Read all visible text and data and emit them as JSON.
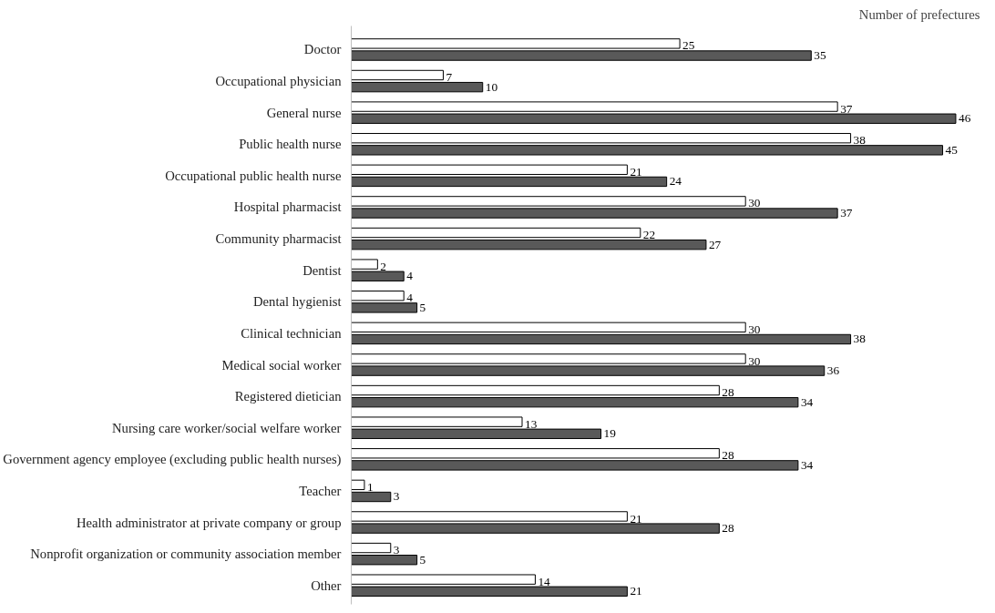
{
  "chart_data": {
    "type": "bar",
    "orientation": "horizontal",
    "xlabel": "Number of prefectures",
    "categories": [
      "Doctor",
      "Occupational physician",
      "General nurse",
      "Public health nurse",
      "Occupational public health nurse",
      "Hospital pharmacist",
      "Community pharmacist",
      "Dentist",
      "Dental hygienist",
      "Clinical technician",
      "Medical social worker",
      "Registered dietician",
      "Nursing care worker/social welfare worker",
      "Government agency employee (excluding public health nurses)",
      "Teacher",
      "Health administrator at private company or group",
      "Nonprofit organization or community association member",
      "Other"
    ],
    "series": [
      {
        "color": "#ffffff",
        "values": [
          25,
          7,
          37,
          38,
          21,
          30,
          22,
          2,
          4,
          30,
          30,
          28,
          13,
          28,
          1,
          21,
          3,
          14
        ]
      },
      {
        "color": "#595959",
        "values": [
          35,
          10,
          46,
          45,
          24,
          37,
          27,
          4,
          5,
          38,
          36,
          34,
          19,
          34,
          3,
          28,
          5,
          21
        ]
      }
    ],
    "tick_labels": "y",
    "grid": false,
    "data_labels": true
  }
}
